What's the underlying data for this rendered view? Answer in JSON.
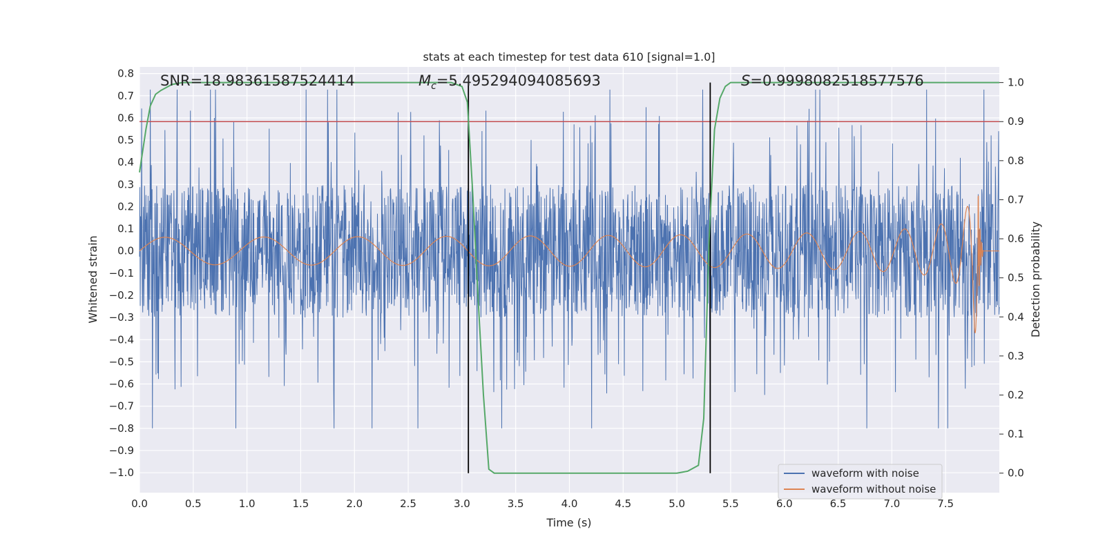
{
  "chart_data": {
    "type": "line",
    "title": "stats at each timestep for test data 610 [signal=1.0]",
    "xlabel": "Time (s)",
    "ylabel": "Whitened strain",
    "ylabel_right": "Detection probability",
    "xlim": [
      0.0,
      8.0
    ],
    "ylim": [
      -1.09,
      0.83
    ],
    "ylim_right": [
      -0.05,
      1.04
    ],
    "xticks": [
      "0.0",
      "0.5",
      "1.0",
      "1.5",
      "2.0",
      "2.5",
      "3.0",
      "3.5",
      "4.0",
      "4.5",
      "5.0",
      "5.5",
      "6.0",
      "6.5",
      "7.0",
      "7.5"
    ],
    "yticks": [
      "0.8",
      "0.7",
      "0.6",
      "0.5",
      "0.4",
      "0.3",
      "0.2",
      "0.1",
      "0.0",
      "−0.1",
      "−0.2",
      "−0.3",
      "−0.4",
      "−0.5",
      "−0.6",
      "−0.7",
      "−0.8",
      "−0.9",
      "−1.0"
    ],
    "yticks_right": [
      "1.0",
      "0.9",
      "0.8",
      "0.7",
      "0.6",
      "0.5",
      "0.4",
      "0.3",
      "0.2",
      "0.1",
      "0.0"
    ],
    "grid": true,
    "legend_position": "lower-right",
    "annotations": {
      "snr": "SNR=18.98361587524414",
      "mc_symbol": "M",
      "mc_sub": "c",
      "mc_value": "=5.495294094085693",
      "s_symbol": "S",
      "s_value": "=0.9998082518577576"
    },
    "series": [
      {
        "name": "waveform with noise",
        "color": "#4c72b0",
        "kind": "noise",
        "envelope": 0.3,
        "peak_min": -1.0,
        "peak_max": 0.75
      },
      {
        "name": "waveform without noise",
        "color": "#dd8452",
        "kind": "chirp",
        "amp_start": 0.03,
        "amp_end": 0.37,
        "merger_time": 7.8,
        "freq_start": 30,
        "freq_end": 200
      }
    ],
    "detection_probability": {
      "color": "#55a868",
      "x": [
        0.0,
        0.06,
        0.1,
        0.15,
        0.2,
        0.3,
        0.4,
        0.5,
        1.0,
        2.0,
        2.9,
        3.0,
        3.05,
        3.1,
        3.15,
        3.2,
        3.25,
        3.3,
        3.4,
        4.0,
        5.0,
        5.1,
        5.2,
        5.25,
        5.3,
        5.35,
        5.4,
        5.45,
        5.5,
        5.6,
        6.0,
        7.0,
        8.0
      ],
      "y": [
        0.77,
        0.88,
        0.94,
        0.97,
        0.98,
        0.995,
        1.0,
        1.0,
        1.0,
        1.0,
        1.0,
        0.99,
        0.95,
        0.72,
        0.45,
        0.2,
        0.01,
        0.0,
        0.0,
        0.0,
        0.0,
        0.005,
        0.02,
        0.14,
        0.6,
        0.88,
        0.96,
        0.99,
        1.0,
        1.0,
        1.0,
        1.0,
        1.0
      ]
    },
    "threshold": {
      "value": 0.9,
      "color": "#c44e52"
    },
    "vlines": [
      3.06,
      5.31
    ]
  }
}
